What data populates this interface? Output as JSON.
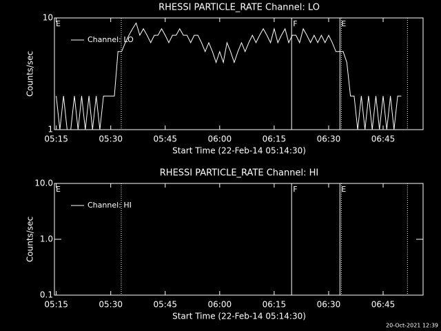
{
  "chart_data": [
    {
      "type": "line",
      "title": "RHESSI PARTICLE_RATE Channel: LO",
      "xlabel": "Start Time (22-Feb-14 05:14:30)",
      "ylabel": "Counts/sec",
      "log_y": true,
      "xlim": [
        "05:14:30",
        "06:56:00"
      ],
      "xticks": [
        "05:15",
        "05:30",
        "05:45",
        "06:00",
        "06:15",
        "06:30",
        "06:45"
      ],
      "ylim": [
        1,
        10
      ],
      "yticks": [
        1,
        10
      ],
      "legend": "upper left",
      "x": [
        "05:15",
        "05:16",
        "05:17",
        "05:18",
        "05:19",
        "05:20",
        "05:21",
        "05:22",
        "05:23",
        "05:24",
        "05:25",
        "05:26",
        "05:27",
        "05:28",
        "05:29",
        "05:30",
        "05:31",
        "05:32",
        "05:33",
        "05:34",
        "05:35",
        "05:36",
        "05:37",
        "05:38",
        "05:39",
        "05:40",
        "05:41",
        "05:42",
        "05:43",
        "05:44",
        "05:45",
        "05:46",
        "05:47",
        "05:48",
        "05:49",
        "05:50",
        "05:51",
        "05:52",
        "05:53",
        "05:54",
        "05:55",
        "05:56",
        "05:57",
        "05:58",
        "05:59",
        "06:00",
        "06:01",
        "06:02",
        "06:03",
        "06:04",
        "06:05",
        "06:06",
        "06:07",
        "06:08",
        "06:09",
        "06:10",
        "06:11",
        "06:12",
        "06:13",
        "06:14",
        "06:15",
        "06:16",
        "06:17",
        "06:18",
        "06:19",
        "06:20",
        "06:21",
        "06:22",
        "06:23",
        "06:24",
        "06:25",
        "06:26",
        "06:27",
        "06:28",
        "06:29",
        "06:30",
        "06:31",
        "06:32",
        "06:33",
        "06:34",
        "06:35",
        "06:36",
        "06:37",
        "06:38",
        "06:39",
        "06:40",
        "06:41",
        "06:42",
        "06:43",
        "06:44",
        "06:45",
        "06:46",
        "06:47",
        "06:48",
        "06:49",
        "06:50"
      ],
      "series": [
        {
          "name": "Channel: LO",
          "color": "#ffffff",
          "values": [
            2,
            1,
            2,
            1,
            1,
            2,
            1,
            2,
            1,
            2,
            1,
            2,
            1,
            2,
            2,
            2,
            2,
            5,
            5,
            6,
            7,
            8,
            9,
            7,
            8,
            7,
            6,
            7,
            7,
            8,
            7,
            6,
            7,
            7,
            8,
            7,
            7,
            6,
            7,
            7,
            6,
            5,
            6,
            5,
            4,
            5,
            4,
            6,
            5,
            4,
            5,
            6,
            5,
            6,
            7,
            6,
            7,
            8,
            7,
            6,
            8,
            6,
            7,
            8,
            6,
            7,
            7,
            6,
            8,
            7,
            6,
            7,
            6,
            7,
            6,
            7,
            6,
            5,
            5,
            5,
            4,
            2,
            2,
            1,
            2,
            1,
            2,
            1,
            2,
            1,
            2,
            1,
            2,
            1,
            2,
            2
          ]
        }
      ],
      "events": [
        {
          "x": "05:14:30",
          "label": "E"
        },
        {
          "x": "06:19:48",
          "label": "F"
        },
        {
          "x": "06:33:06",
          "label": "E"
        }
      ],
      "lines": [
        {
          "x": "05:32:54",
          "style": "dotted"
        },
        {
          "x": "06:19:48",
          "style": "solid"
        },
        {
          "x": "06:33:06",
          "style": "solid"
        },
        {
          "x": "06:33:30",
          "style": "dotted"
        },
        {
          "x": "06:51:42",
          "style": "dotted"
        }
      ]
    },
    {
      "type": "line",
      "title": "RHESSI PARTICLE_RATE Channel: HI",
      "xlabel": "Start Time (22-Feb-14 05:14:30)",
      "ylabel": "Counts/sec",
      "log_y": true,
      "xlim": [
        "05:14:30",
        "06:56:00"
      ],
      "xticks": [
        "05:15",
        "05:30",
        "05:45",
        "06:00",
        "06:15",
        "06:30",
        "06:45"
      ],
      "ylim": [
        0.1,
        10
      ],
      "yticks": [
        0.1,
        {
          "value": 1,
          "label": "1.0"
        },
        {
          "value": 10,
          "label": "10.0"
        }
      ],
      "legend": "upper left",
      "x": [],
      "series": [
        {
          "name": "Channel: HI",
          "color": "#ffffff",
          "values": []
        }
      ],
      "events": [
        {
          "x": "05:14:30",
          "label": "E"
        },
        {
          "x": "06:19:48",
          "label": "F"
        },
        {
          "x": "06:33:06",
          "label": "E"
        }
      ],
      "lines": [
        {
          "x": "05:32:54",
          "style": "dotted"
        },
        {
          "x": "06:19:48",
          "style": "solid"
        },
        {
          "x": "06:33:06",
          "style": "solid"
        },
        {
          "x": "06:33:30",
          "style": "dotted"
        },
        {
          "x": "06:51:42",
          "style": "dotted"
        }
      ]
    }
  ],
  "footer": "20-Oct-2021 12:39"
}
